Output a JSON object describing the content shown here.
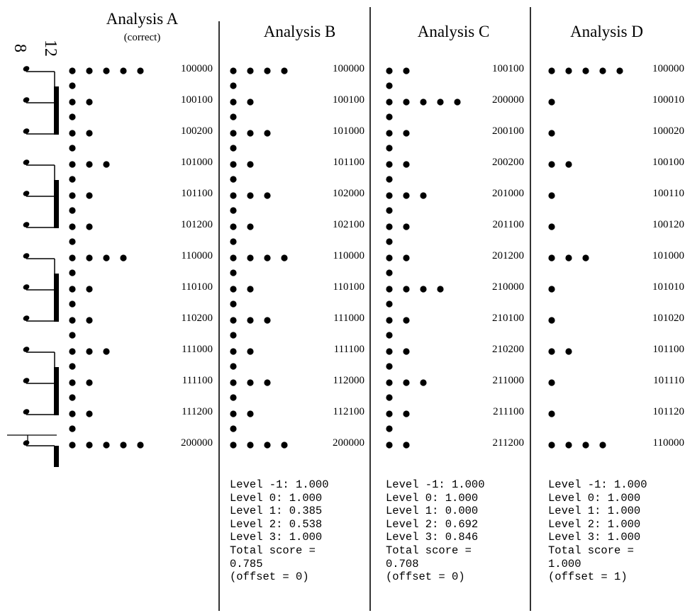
{
  "panels": [
    {
      "id": "A",
      "title": "Analysis A",
      "subtitle": "(correct)",
      "rows": [
        {
          "dots": 5,
          "code": "100000"
        },
        {
          "dots": 2,
          "code": "100100"
        },
        {
          "dots": 2,
          "code": "100200"
        },
        {
          "dots": 3,
          "code": "101000"
        },
        {
          "dots": 2,
          "code": "101100"
        },
        {
          "dots": 2,
          "code": "101200"
        },
        {
          "dots": 4,
          "code": "110000"
        },
        {
          "dots": 2,
          "code": "110100"
        },
        {
          "dots": 2,
          "code": "110200"
        },
        {
          "dots": 3,
          "code": "111000"
        },
        {
          "dots": 2,
          "code": "111100"
        },
        {
          "dots": 2,
          "code": "111200"
        },
        {
          "dots": 5,
          "code": "200000"
        }
      ],
      "scores": []
    },
    {
      "id": "B",
      "title": "Analysis B",
      "subtitle": "",
      "rows": [
        {
          "dots": 4,
          "code": "100000"
        },
        {
          "dots": 2,
          "code": "100100"
        },
        {
          "dots": 3,
          "code": "101000"
        },
        {
          "dots": 2,
          "code": "101100"
        },
        {
          "dots": 3,
          "code": "102000"
        },
        {
          "dots": 2,
          "code": "102100"
        },
        {
          "dots": 4,
          "code": "110000"
        },
        {
          "dots": 2,
          "code": "110100"
        },
        {
          "dots": 3,
          "code": "111000"
        },
        {
          "dots": 2,
          "code": "111100"
        },
        {
          "dots": 3,
          "code": "112000"
        },
        {
          "dots": 2,
          "code": "112100"
        },
        {
          "dots": 4,
          "code": "200000"
        }
      ],
      "scores": [
        "Level -1: 1.000",
        "Level 0: 1.000",
        "Level 1: 0.385",
        "Level 2: 0.538",
        "Level 3: 1.000",
        "Total score =",
        "0.785",
        "(offset = 0)"
      ]
    },
    {
      "id": "C",
      "title": "Analysis C",
      "subtitle": "",
      "rows": [
        {
          "dots": 2,
          "code": "100100"
        },
        {
          "dots": 5,
          "code": "200000"
        },
        {
          "dots": 2,
          "code": "200100"
        },
        {
          "dots": 2,
          "code": "200200"
        },
        {
          "dots": 3,
          "code": "201000"
        },
        {
          "dots": 2,
          "code": "201100"
        },
        {
          "dots": 2,
          "code": "201200"
        },
        {
          "dots": 4,
          "code": "210000"
        },
        {
          "dots": 2,
          "code": "210100"
        },
        {
          "dots": 2,
          "code": "210200"
        },
        {
          "dots": 3,
          "code": "211000"
        },
        {
          "dots": 2,
          "code": "211100"
        },
        {
          "dots": 2,
          "code": "211200"
        }
      ],
      "scores": [
        "Level -1: 1.000",
        "Level 0: 1.000",
        "Level 1: 0.000",
        "Level 2: 0.692",
        "Level 3: 0.846",
        "Total score =",
        "0.708",
        "(offset = 0)"
      ]
    },
    {
      "id": "D",
      "title": "Analysis D",
      "subtitle": "",
      "rows": [
        {
          "dots": 5,
          "code": "100000"
        },
        {
          "dots": 1,
          "code": "100010"
        },
        {
          "dots": 1,
          "code": "100020"
        },
        {
          "dots": 2,
          "code": "100100"
        },
        {
          "dots": 1,
          "code": "100110"
        },
        {
          "dots": 1,
          "code": "100120"
        },
        {
          "dots": 3,
          "code": "101000"
        },
        {
          "dots": 1,
          "code": "101010"
        },
        {
          "dots": 1,
          "code": "101020"
        },
        {
          "dots": 2,
          "code": "101100"
        },
        {
          "dots": 1,
          "code": "101110"
        },
        {
          "dots": 1,
          "code": "101120"
        },
        {
          "dots": 4,
          "code": "110000"
        }
      ],
      "scores": [
        "Level -1: 1.000",
        "Level 0: 1.000",
        "Level 1: 1.000",
        "Level 2: 1.000",
        "Level 3: 1.000",
        "Total score =",
        "1.000",
        "(offset = 1)"
      ]
    }
  ],
  "meter": {
    "top": "8",
    "bottom": "12"
  }
}
